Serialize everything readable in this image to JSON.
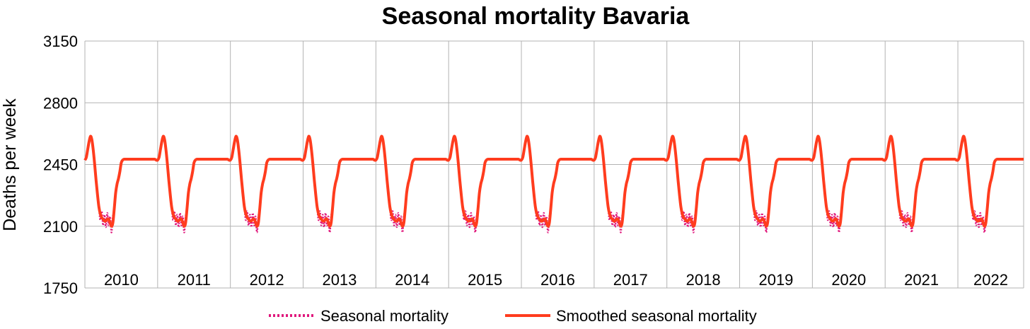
{
  "chart_data": {
    "type": "line",
    "title": "Seasonal mortality Bavaria",
    "xlabel": "",
    "ylabel": "Deaths per week",
    "ylim": [
      1750,
      3150
    ],
    "yticks": [
      1750,
      2100,
      2450,
      2800,
      3150
    ],
    "grid": true,
    "legend_position": "bottom",
    "years": [
      "2010",
      "2011",
      "2012",
      "2013",
      "2014",
      "2015",
      "2016",
      "2017",
      "2018",
      "2019",
      "2020",
      "2021",
      "2022"
    ],
    "x_unit": "week",
    "weeks_per_year": 52,
    "last_year_weeks_shown": 47,
    "annual_cycle_weekly": [
      2475,
      2490,
      2535,
      2580,
      2610,
      2590,
      2530,
      2450,
      2360,
      2280,
      2210,
      2170,
      2150,
      2140,
      2130,
      2130,
      2140,
      2140,
      2120,
      2100,
      2120,
      2200,
      2290,
      2340,
      2370,
      2410,
      2460,
      2475,
      2480,
      2480,
      2480,
      2480,
      2480,
      2480,
      2480,
      2480,
      2480,
      2480,
      2480,
      2480,
      2480,
      2480,
      2480,
      2480,
      2480,
      2480,
      2480,
      2480,
      2480,
      2480,
      2480,
      2475
    ],
    "series": [
      {
        "name": "Seasonal mortality",
        "color": "#e0187c",
        "style": "dotted",
        "pattern": "annual_cycle_weekly_with_summer_noise"
      },
      {
        "name": "Smoothed seasonal mortality",
        "color": "#ff3c1e",
        "style": "solid",
        "pattern": "annual_cycle_weekly"
      }
    ]
  }
}
